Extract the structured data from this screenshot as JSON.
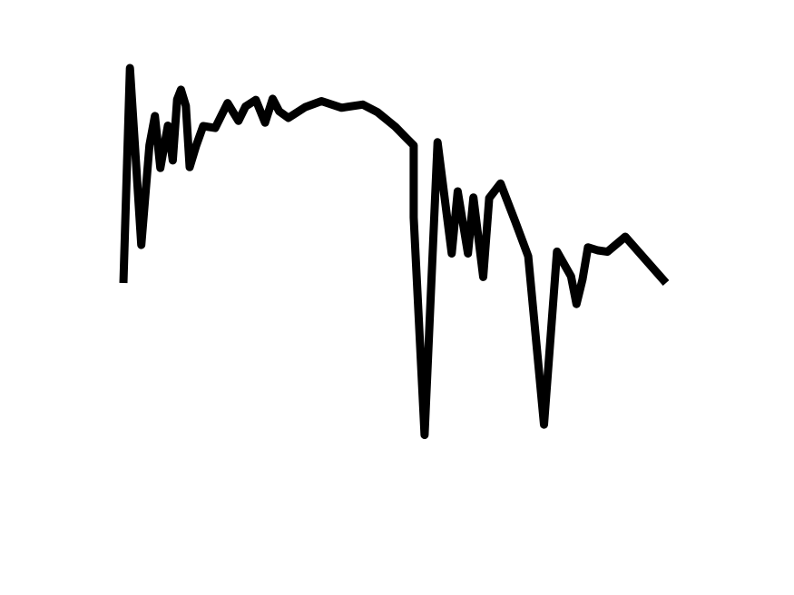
{
  "chart_data": {
    "type": "line",
    "title": "",
    "xlabel": "",
    "ylabel": "",
    "grid": false,
    "legend": "none",
    "line_color": "#000000",
    "background": "#ffffff",
    "xlim": [
      0,
      100
    ],
    "ylim": [
      0,
      100
    ],
    "series": [
      {
        "x": [
          0,
          1.2,
          3.3,
          4.8,
          5.8,
          6.8,
          8.2,
          9.1,
          9.9,
          10.6,
          11.5,
          12.2,
          13.4,
          14.7,
          16.9,
          19.2,
          21.2,
          22.5,
          24.4,
          26.1,
          27.5,
          28.7,
          30.4,
          33.5,
          36.5,
          40.2,
          44.1,
          46.8,
          50.1,
          52.1,
          53.5,
          53.5,
          55.5,
          57.9,
          60.5,
          61.6,
          63.5,
          64.5,
          66.3,
          67.4,
          69.5,
          72.2,
          74.6,
          77.5,
          79.9,
          82.5,
          83.5,
          84.6,
          85.6,
          87.4,
          89.2,
          92.5,
          100
        ],
        "y": [
          0,
          100,
          17.7,
          64.1,
          77.7,
          53.5,
          73.2,
          57.0,
          85.4,
          89.9,
          82.4,
          53.9,
          63.8,
          73.0,
          72.1,
          83.7,
          75.4,
          82.1,
          85.2,
          74.6,
          85.7,
          79.9,
          76.8,
          81.8,
          84.6,
          81.5,
          83.0,
          79.5,
          72.7,
          67.5,
          64.0,
          30.5,
          -70.7,
          65.5,
          13.7,
          42.6,
          13.7,
          39.8,
          2.8,
          39.5,
          46.3,
          28.6,
          12.4,
          -65.9,
          14.6,
          3.1,
          -9.8,
          1.6,
          16.6,
          15.2,
          14.5,
          21.5,
          0
        ]
      }
    ]
  }
}
